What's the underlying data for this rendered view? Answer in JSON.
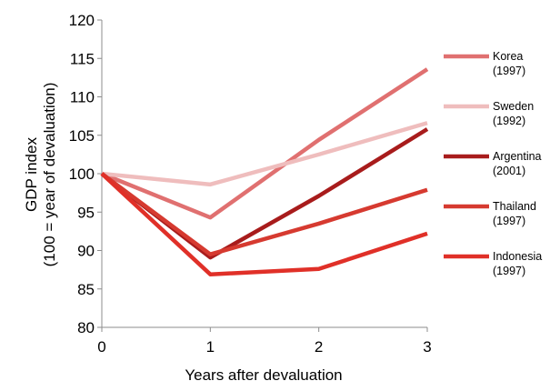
{
  "chart_data": {
    "type": "line",
    "x": [
      0,
      1,
      2,
      3
    ],
    "xlabel": "Years after devaluation",
    "ylabel": "GDP index",
    "ylabel_line2": "(100 = year of devaluation)",
    "ylim": [
      80,
      120
    ],
    "yticks": [
      80,
      85,
      90,
      95,
      100,
      105,
      110,
      115,
      120
    ],
    "xticks": [
      0,
      1,
      2,
      3
    ],
    "grid": false,
    "legend_position": "right",
    "series": [
      {
        "name": "Korea",
        "sub": "(1997)",
        "color": "#e07070",
        "values": [
          100,
          94.3,
          104.4,
          113.6
        ]
      },
      {
        "name": "Sweden",
        "sub": "(1992)",
        "color": "#efbdbd",
        "values": [
          100,
          98.6,
          102.5,
          106.6
        ]
      },
      {
        "name": "Argentina",
        "sub": "(2001)",
        "color": "#a81c1c",
        "values": [
          100,
          89.1,
          97.1,
          105.8
        ]
      },
      {
        "name": "Thailand",
        "sub": "(1997)",
        "color": "#d63a30",
        "values": [
          100,
          89.5,
          93.5,
          97.9
        ]
      },
      {
        "name": "Indonesia",
        "sub": "(1997)",
        "color": "#e03028",
        "values": [
          100,
          86.9,
          87.6,
          92.2
        ]
      }
    ]
  }
}
